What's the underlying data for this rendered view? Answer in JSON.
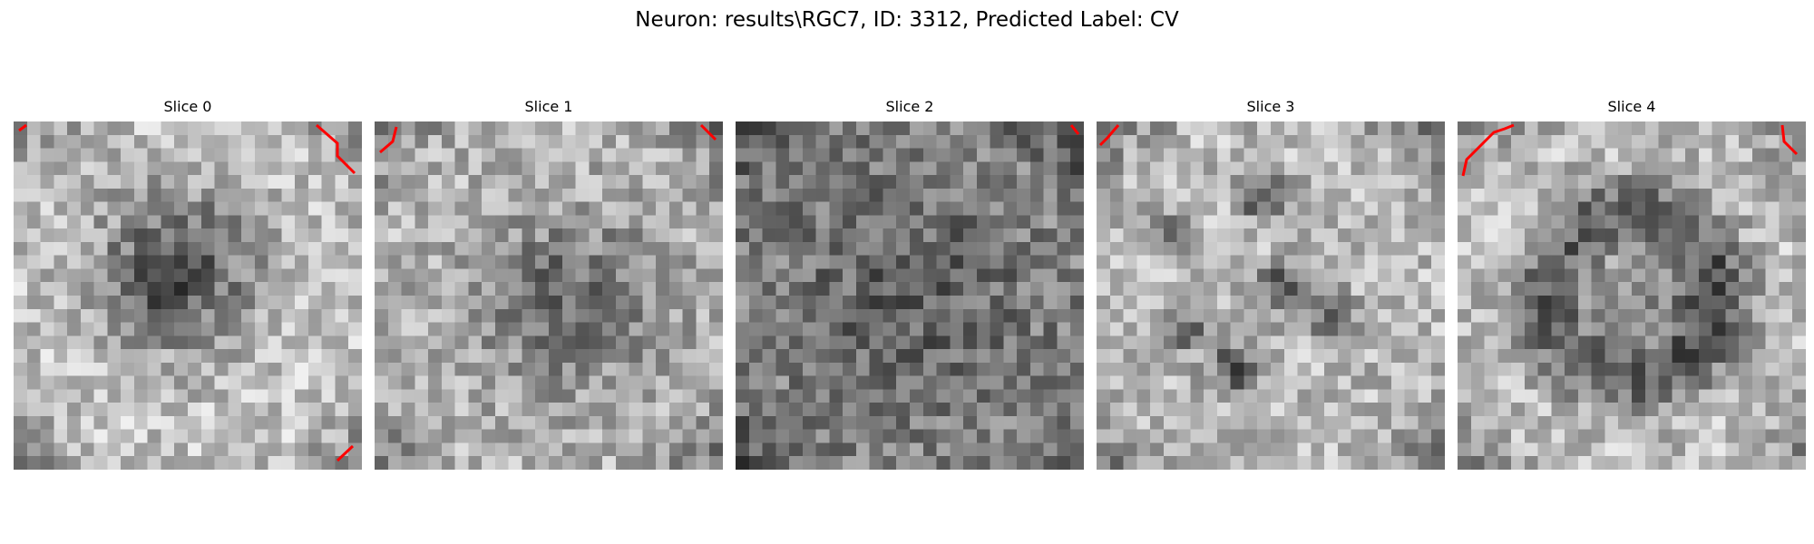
{
  "figure": {
    "title": "Neuron: results\\RGC7, ID: 3312, Predicted Label: CV"
  },
  "slices": [
    {
      "label": "Slice 0",
      "pattern": "blob",
      "seed": 7,
      "outline_color": "#ff0000"
    },
    {
      "label": "Slice 1",
      "pattern": "spread",
      "seed": 13,
      "outline_color": "#ff0000"
    },
    {
      "label": "Slice 2",
      "pattern": "dark",
      "seed": 21,
      "outline_color": "#ff0000"
    },
    {
      "label": "Slice 3",
      "pattern": "spots",
      "seed": 34,
      "outline_color": "#ff0000"
    },
    {
      "label": "Slice 4",
      "pattern": "ring",
      "seed": 55,
      "outline_color": "#ff0000"
    }
  ]
}
